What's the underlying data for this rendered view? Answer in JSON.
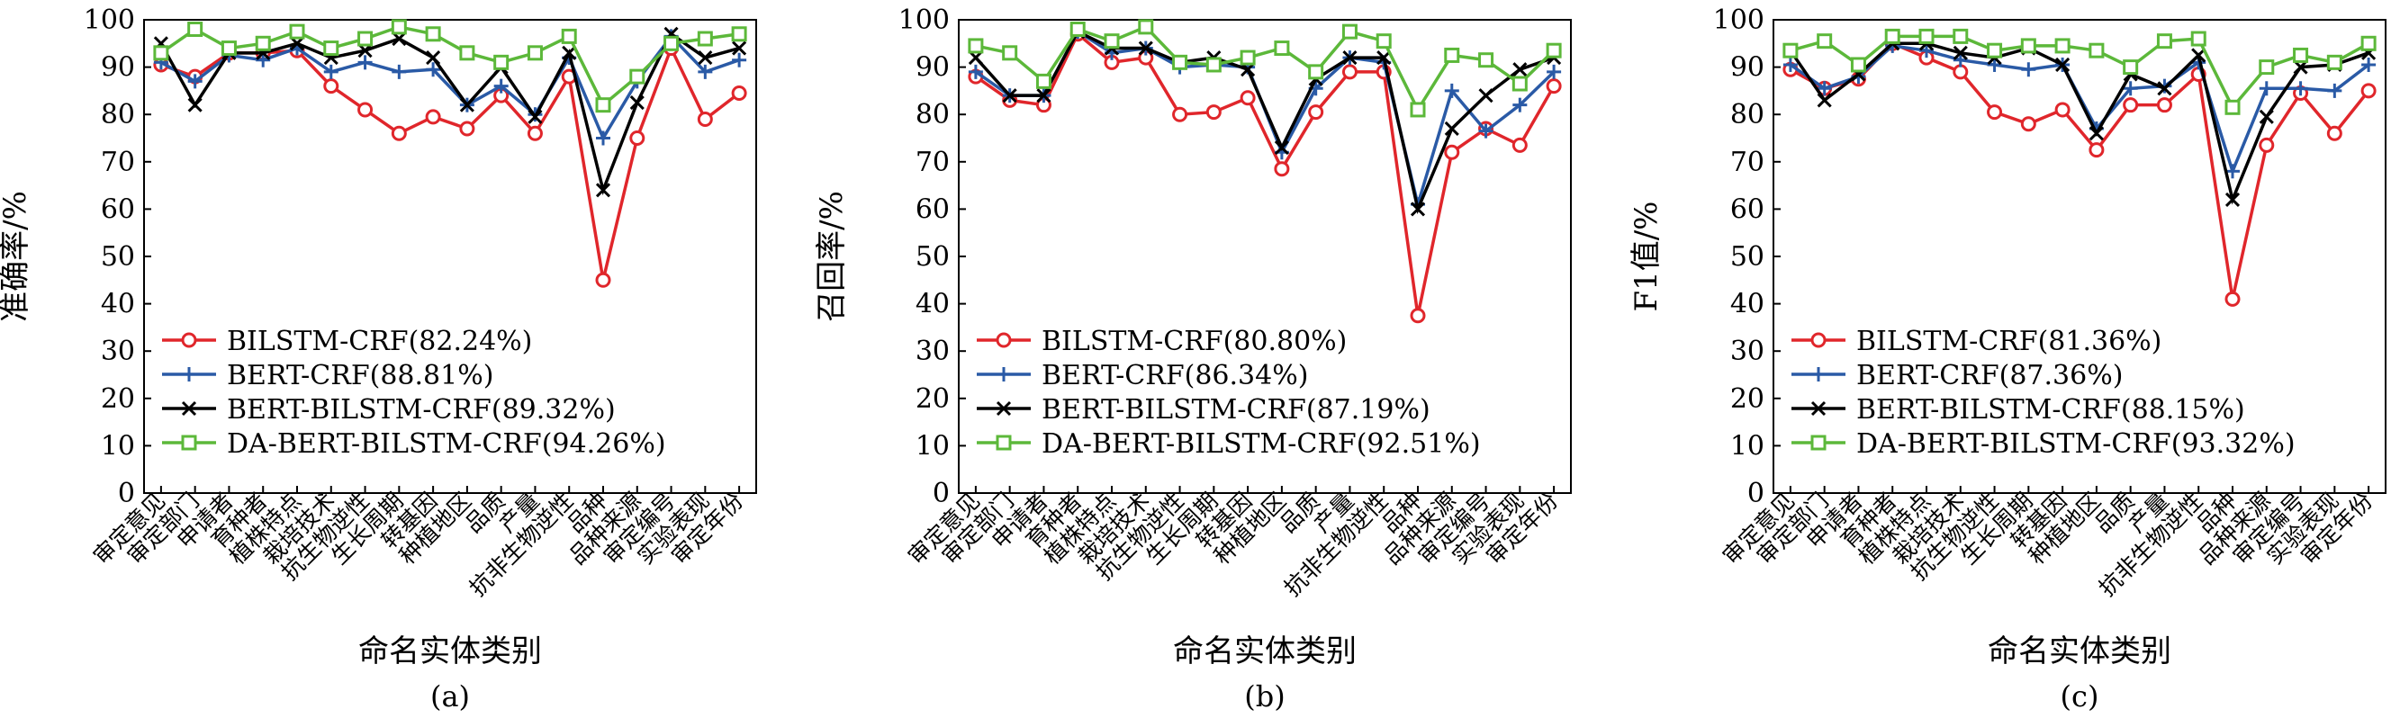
{
  "series_styles": [
    {
      "color": "#e0262b",
      "marker": "circle"
    },
    {
      "color": "#2a5aa6",
      "marker": "plus"
    },
    {
      "color": "#000000",
      "marker": "x"
    },
    {
      "color": "#5cb83a",
      "marker": "square"
    }
  ],
  "chart_data": [
    {
      "type": "line",
      "panel_label": "(a)",
      "xlabel": "命名实体类别",
      "ylabel": "准确率/%",
      "ylim": [
        0,
        100
      ],
      "yticks": [
        0,
        10,
        20,
        30,
        40,
        50,
        60,
        70,
        80,
        90,
        100
      ],
      "grid": false,
      "legend_position": "lower-left",
      "categories": [
        "审定意见",
        "审定部门",
        "申请者",
        "育种者",
        "植株特点",
        "栽培技术",
        "抗生物逆性",
        "生长周期",
        "转基因",
        "种植地区",
        "品质",
        "产量",
        "抗非生物逆性",
        "品种",
        "品种来源",
        "审定编号",
        "实验表现",
        "审定年份"
      ],
      "series": [
        {
          "name": "BILSTM-CRF(82.24%)",
          "values": [
            90.5,
            88,
            93,
            93,
            93.5,
            86,
            81,
            76,
            79.5,
            77,
            84,
            76,
            88,
            45,
            75,
            94,
            79,
            84.5
          ]
        },
        {
          "name": "BERT-CRF(88.81%)",
          "values": [
            91,
            87,
            92.5,
            91.5,
            94,
            89,
            91,
            89,
            89.5,
            82,
            86,
            80,
            92,
            75,
            87,
            96.5,
            89,
            91.5
          ]
        },
        {
          "name": "BERT-BILSTM-CRF(89.32%)",
          "values": [
            95,
            82,
            93,
            93,
            95,
            92,
            93.5,
            96,
            92,
            82,
            90,
            79.5,
            93,
            64,
            82.5,
            97,
            92,
            94
          ]
        },
        {
          "name": "DA-BERT-BILSTM-CRF(94.26%)",
          "values": [
            93,
            98,
            94,
            95,
            97.5,
            94,
            96,
            98.5,
            97,
            93,
            91,
            93,
            96.5,
            82,
            88,
            95,
            96,
            97
          ]
        }
      ]
    },
    {
      "type": "line",
      "panel_label": "(b)",
      "xlabel": "命名实体类别",
      "ylabel": "召回率/%",
      "ylim": [
        0,
        100
      ],
      "yticks": [
        0,
        10,
        20,
        30,
        40,
        50,
        60,
        70,
        80,
        90,
        100
      ],
      "grid": false,
      "legend_position": "lower-left",
      "categories": [
        "审定意见",
        "审定部门",
        "申请者",
        "育种者",
        "植株特点",
        "栽培技术",
        "抗生物逆性",
        "生长周期",
        "转基因",
        "种植地区",
        "品质",
        "产量",
        "抗非生物逆性",
        "品种",
        "品种来源",
        "审定编号",
        "实验表现",
        "审定年份"
      ],
      "series": [
        {
          "name": "BILSTM-CRF(80.80%)",
          "values": [
            88,
            83,
            82,
            97,
            91,
            92,
            80,
            80.5,
            83.5,
            68.5,
            80.5,
            89,
            89,
            37.5,
            72,
            77,
            73.5,
            86
          ]
        },
        {
          "name": "BERT-CRF(86.34%)",
          "values": [
            89,
            84,
            84,
            97.5,
            93,
            94,
            90,
            90.5,
            90,
            72,
            85.5,
            92,
            91,
            61,
            85,
            76.5,
            82,
            89
          ]
        },
        {
          "name": "BERT-BILSTM-CRF(87.19%)",
          "values": [
            92,
            84,
            84,
            97.5,
            94,
            94,
            91,
            92,
            89.5,
            73,
            87.5,
            92,
            92,
            60,
            77,
            84,
            89.5,
            92
          ]
        },
        {
          "name": "DA-BERT-BILSTM-CRF(92.51%)",
          "values": [
            94.5,
            93,
            87,
            98,
            95.5,
            98.5,
            91,
            90.5,
            92,
            94,
            89,
            97.5,
            95.5,
            81,
            92.5,
            91.5,
            86.5,
            93.5
          ]
        }
      ]
    },
    {
      "type": "line",
      "panel_label": "(c)",
      "xlabel": "命名实体类别",
      "ylabel": "F1值/%",
      "ylim": [
        0,
        100
      ],
      "yticks": [
        0,
        10,
        20,
        30,
        40,
        50,
        60,
        70,
        80,
        90,
        100
      ],
      "grid": false,
      "legend_position": "lower-left",
      "categories": [
        "审定意见",
        "审定部门",
        "申请者",
        "育种者",
        "植株特点",
        "栽培技术",
        "抗生物逆性",
        "生长周期",
        "转基因",
        "种植地区",
        "品质",
        "产量",
        "抗非生物逆性",
        "品种",
        "品种来源",
        "审定编号",
        "实验表现",
        "审定年份"
      ],
      "series": [
        {
          "name": "BILSTM-CRF(81.36%)",
          "values": [
            89.5,
            85.5,
            87.5,
            95,
            92,
            89,
            80.5,
            78,
            81,
            72.5,
            82,
            82,
            88.5,
            41,
            73.5,
            84.5,
            76,
            85
          ]
        },
        {
          "name": "BERT-CRF(87.36%)",
          "values": [
            90.5,
            85.5,
            88,
            94.5,
            93.5,
            91.5,
            90.5,
            89.5,
            90.5,
            77,
            85.5,
            86,
            91,
            68,
            85.5,
            85.5,
            85,
            90.5
          ]
        },
        {
          "name": "BERT-BILSTM-CRF(88.15%)",
          "values": [
            93.5,
            83,
            88.5,
            95,
            95,
            93,
            92,
            94,
            90.5,
            76,
            88.5,
            85.5,
            92.5,
            62,
            79.5,
            90,
            90.5,
            93
          ]
        },
        {
          "name": "DA-BERT-BILSTM-CRF(93.32%)",
          "values": [
            93.5,
            95.5,
            90.5,
            96.5,
            96.5,
            96.5,
            93.5,
            94.5,
            94.5,
            93.5,
            90,
            95.5,
            96,
            81.5,
            90,
            92.5,
            91,
            95
          ]
        }
      ]
    }
  ]
}
